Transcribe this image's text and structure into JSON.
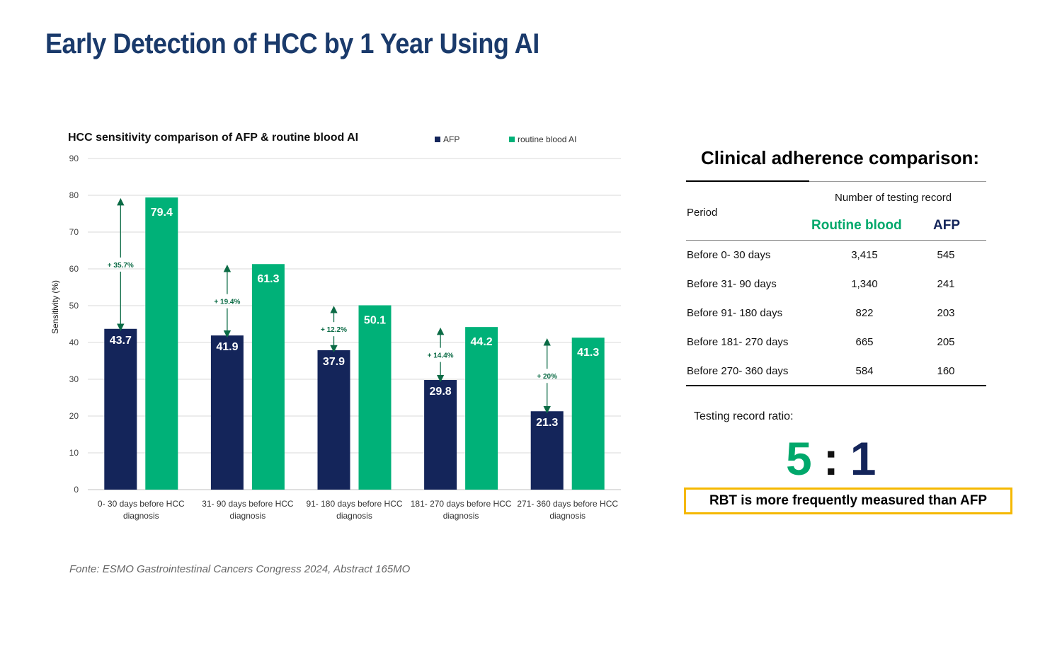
{
  "page": {
    "title": "Early Detection of HCC by 1 Year Using AI",
    "source": "Fonte: ESMO Gastrointestinal Cancers Congress 2024, Abstract 165MO"
  },
  "colors": {
    "afp": "#14255a",
    "rbai": "#00b178",
    "arrow": "#0b6b45",
    "title": "#1a3a6b"
  },
  "chart_data": {
    "type": "bar",
    "title": "HCC sensitivity comparison of AFP & routine blood AI",
    "xlabel": "",
    "ylabel": "Sensitivity (%)",
    "ylim": [
      0,
      90
    ],
    "yticks": [
      0,
      10,
      20,
      30,
      40,
      50,
      60,
      70,
      80,
      90
    ],
    "grid": true,
    "legend_position": "top-right",
    "categories": [
      [
        "0- 30 days before HCC",
        "diagnosis"
      ],
      [
        "31- 90 days before HCC",
        "diagnosis"
      ],
      [
        "91- 180 days before HCC",
        "diagnosis"
      ],
      [
        "181- 270 days before HCC",
        "diagnosis"
      ],
      [
        "271- 360 days before HCC",
        "diagnosis"
      ]
    ],
    "series": [
      {
        "name": "AFP",
        "values": [
          43.7,
          41.9,
          37.9,
          29.8,
          21.3
        ],
        "labels": [
          "43.7",
          "41.9",
          "37.9",
          "29.8",
          "21.3"
        ]
      },
      {
        "name": "routine blood AI",
        "values": [
          79.4,
          61.3,
          50.1,
          44.2,
          41.3
        ],
        "labels": [
          "79.4",
          "61.3",
          "50.1",
          "44.2",
          "41.3"
        ]
      }
    ],
    "annotations": [
      "+ 35.7%",
      "+ 19.4%",
      "+ 12.2%",
      "+ 14.4%",
      "+ 20%"
    ]
  },
  "adherence": {
    "title": "Clinical adherence comparison:",
    "column_group_header": "Number of testing record",
    "period_header": "Period",
    "routine_blood_header": "Routine blood",
    "afp_header": "AFP",
    "rows": [
      {
        "period": "Before 0- 30 days",
        "routine_blood": "3,415",
        "afp": "545"
      },
      {
        "period": "Before 31- 90 days",
        "routine_blood": "1,340",
        "afp": "241"
      },
      {
        "period": "Before 91- 180 days",
        "routine_blood": "822",
        "afp": "203"
      },
      {
        "period": "Before 181- 270 days",
        "routine_blood": "665",
        "afp": "205"
      },
      {
        "period": "Before 270- 360 days",
        "routine_blood": "584",
        "afp": "160"
      }
    ],
    "ratio_label": "Testing record ratio:",
    "ratio_left": "5",
    "ratio_separator": ":",
    "ratio_right": "1",
    "callout": "RBT is more frequently measured than AFP"
  }
}
